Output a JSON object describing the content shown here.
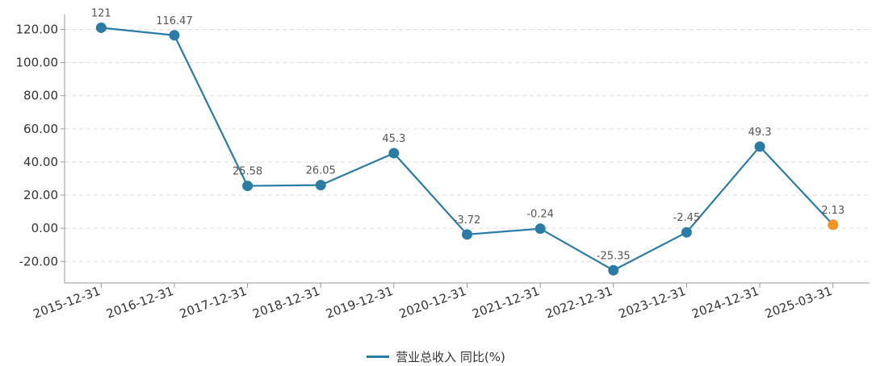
{
  "chart_data": {
    "type": "line",
    "categories": [
      "2015-12-31",
      "2016-12-31",
      "2017-12-31",
      "2018-12-31",
      "2019-12-31",
      "2020-12-31",
      "2021-12-31",
      "2022-12-31",
      "2023-12-31",
      "2024-12-31",
      "2025-03-31"
    ],
    "series": [
      {
        "name": "营业总收入 同比(%)",
        "values": [
          121,
          116.47,
          25.58,
          26.05,
          45.3,
          -3.72,
          -0.24,
          -25.35,
          -2.45,
          49.3,
          2.13
        ],
        "labels": [
          "121",
          "116.47",
          "25.58",
          "26.05",
          "45.3",
          "-3.72",
          "-0.24",
          "-25.35",
          "-2.45",
          "49.3",
          "2.13"
        ]
      }
    ],
    "yticks": [
      "120.00",
      "100.00",
      "80.00",
      "60.00",
      "40.00",
      "20.00",
      "0.00",
      "-20.00"
    ],
    "ylim": [
      -33,
      129
    ],
    "grid": true,
    "legend_position": "bottom-center",
    "colors": {
      "line": "#2a7ca6",
      "point": "#2a7ca6",
      "last_point": "#f0951f",
      "grid": "#dddddd",
      "axis": "#999999",
      "text": "#333333",
      "label": "#555555"
    }
  },
  "legend": {
    "label": "营业总收入 同比(%)"
  }
}
